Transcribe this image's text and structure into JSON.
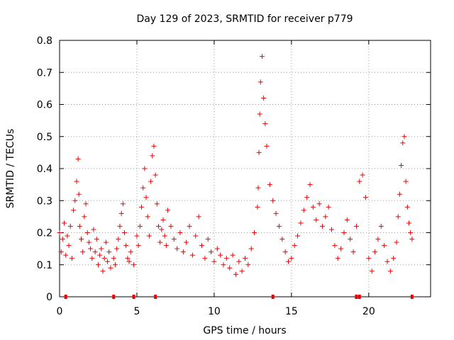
{
  "chart_data": {
    "type": "scatter",
    "title": "Day 129 of 2023, SRMTID for receiver p779",
    "xlabel": "GPS time / hours",
    "ylabel": "SRMTID / TECUs",
    "xlim": [
      0,
      24
    ],
    "ylim": [
      0,
      0.8
    ],
    "xticks": [
      0,
      5,
      10,
      15,
      20
    ],
    "yticks": [
      0,
      0.1,
      0.2,
      0.3,
      0.4,
      0.5,
      0.6,
      0.7,
      0.8
    ],
    "xtick_labels": [
      "0",
      "5",
      "10",
      "15",
      "20"
    ],
    "ytick_labels": [
      "0",
      "0.1",
      "0.2",
      "0.3",
      "0.4",
      "0.5",
      "0.6",
      "0.7",
      "0.8"
    ],
    "grid": true,
    "marker": "+",
    "color": "#ee0000",
    "series": [
      {
        "name": "SRMTID",
        "x": [
          0.0,
          0.1,
          0.2,
          0.3,
          0.4,
          0.5,
          0.6,
          0.7,
          0.8,
          0.9,
          1.0,
          1.1,
          1.2,
          1.25,
          1.3,
          1.4,
          1.5,
          1.6,
          1.7,
          1.8,
          1.9,
          2.0,
          2.1,
          2.2,
          2.3,
          2.4,
          2.5,
          2.6,
          2.7,
          2.8,
          2.9,
          3.0,
          3.1,
          3.2,
          3.3,
          3.5,
          3.6,
          3.7,
          3.8,
          3.9,
          4.0,
          4.1,
          4.2,
          4.3,
          4.4,
          4.5,
          4.6,
          4.8,
          5.0,
          5.1,
          5.2,
          5.3,
          5.4,
          5.5,
          5.6,
          5.7,
          5.8,
          5.9,
          6.0,
          6.1,
          6.2,
          6.3,
          6.4,
          6.5,
          6.6,
          6.7,
          6.8,
          6.9,
          7.0,
          7.2,
          7.4,
          7.6,
          7.8,
          8.0,
          8.2,
          8.4,
          8.6,
          8.8,
          9.0,
          9.2,
          9.4,
          9.6,
          9.8,
          10.0,
          10.2,
          10.4,
          10.6,
          10.8,
          11.0,
          11.2,
          11.4,
          11.6,
          11.8,
          12.0,
          12.2,
          12.4,
          12.6,
          12.8,
          12.85,
          12.9,
          12.95,
          13.0,
          13.1,
          13.2,
          13.3,
          13.4,
          13.6,
          13.8,
          14.0,
          14.2,
          14.4,
          14.6,
          14.8,
          15.0,
          15.2,
          15.4,
          15.6,
          15.8,
          16.0,
          16.2,
          16.4,
          16.6,
          16.8,
          17.0,
          17.2,
          17.4,
          17.6,
          17.8,
          18.0,
          18.2,
          18.4,
          18.6,
          18.8,
          19.0,
          19.2,
          19.4,
          19.6,
          19.8,
          20.0,
          20.2,
          20.4,
          20.6,
          20.8,
          21.0,
          21.2,
          21.4,
          21.6,
          21.8,
          21.9,
          22.0,
          22.1,
          22.2,
          22.3,
          22.4,
          22.5,
          22.6,
          22.7,
          22.8
        ],
        "y": [
          0.2,
          0.14,
          0.18,
          0.23,
          0.13,
          0.19,
          0.16,
          0.22,
          0.12,
          0.27,
          0.3,
          0.36,
          0.43,
          0.32,
          0.22,
          0.18,
          0.14,
          0.25,
          0.29,
          0.2,
          0.17,
          0.15,
          0.12,
          0.21,
          0.14,
          0.18,
          0.1,
          0.13,
          0.15,
          0.08,
          0.12,
          0.17,
          0.11,
          0.14,
          0.09,
          0.12,
          0.1,
          0.15,
          0.18,
          0.22,
          0.26,
          0.29,
          0.2,
          0.16,
          0.12,
          0.11,
          0.14,
          0.1,
          0.19,
          0.16,
          0.22,
          0.28,
          0.34,
          0.4,
          0.31,
          0.25,
          0.19,
          0.36,
          0.44,
          0.47,
          0.38,
          0.29,
          0.22,
          0.17,
          0.21,
          0.24,
          0.19,
          0.16,
          0.27,
          0.22,
          0.18,
          0.15,
          0.2,
          0.14,
          0.17,
          0.22,
          0.13,
          0.19,
          0.25,
          0.16,
          0.12,
          0.18,
          0.14,
          0.11,
          0.15,
          0.13,
          0.1,
          0.12,
          0.09,
          0.13,
          0.07,
          0.11,
          0.08,
          0.12,
          0.1,
          0.15,
          0.2,
          0.28,
          0.34,
          0.45,
          0.57,
          0.67,
          0.75,
          0.62,
          0.54,
          0.47,
          0.35,
          0.3,
          0.26,
          0.22,
          0.18,
          0.14,
          0.11,
          0.12,
          0.16,
          0.19,
          0.23,
          0.27,
          0.31,
          0.35,
          0.28,
          0.24,
          0.29,
          0.22,
          0.25,
          0.28,
          0.21,
          0.16,
          0.12,
          0.15,
          0.2,
          0.24,
          0.18,
          0.14,
          0.22,
          0.36,
          0.38,
          0.31,
          0.12,
          0.08,
          0.14,
          0.18,
          0.22,
          0.16,
          0.11,
          0.08,
          0.12,
          0.17,
          0.25,
          0.32,
          0.41,
          0.48,
          0.5,
          0.36,
          0.28,
          0.23,
          0.2,
          0.18
        ]
      }
    ],
    "data_gap_markers_x": [
      0.4,
      3.5,
      4.8,
      6.2,
      13.8,
      19.2,
      19.4,
      22.8
    ]
  }
}
